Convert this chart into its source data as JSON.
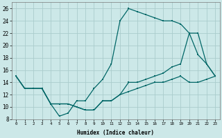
{
  "xlabel": "Humidex (Indice chaleur)",
  "bg_color": "#cce8e8",
  "grid_color": "#aacccc",
  "line_color": "#006666",
  "xlim": [
    -0.5,
    23.5
  ],
  "ylim": [
    8,
    27
  ],
  "xtick_vals": [
    0,
    1,
    2,
    3,
    4,
    5,
    6,
    7,
    8,
    9,
    10,
    11,
    12,
    13,
    14,
    15,
    16,
    17,
    18,
    19,
    20,
    21,
    22,
    23
  ],
  "ytick_vals": [
    8,
    10,
    12,
    14,
    16,
    18,
    20,
    22,
    24,
    26
  ],
  "line1_x": [
    0,
    1,
    2,
    3,
    4,
    5,
    6,
    7,
    8,
    9,
    10,
    11,
    12,
    13,
    14,
    15,
    16,
    17,
    18,
    19,
    20,
    21,
    22,
    23
  ],
  "line1_y": [
    15,
    13,
    13,
    13,
    10.5,
    8.5,
    9.0,
    11.0,
    11.0,
    13.0,
    14.5,
    17.0,
    24.0,
    26.0,
    25.5,
    25.0,
    24.5,
    24.0,
    24.0,
    23.5,
    22.0,
    18.5,
    17.0,
    15.0
  ],
  "line2_x": [
    0,
    1,
    3,
    4,
    5,
    6,
    7,
    8,
    9,
    10,
    11,
    12,
    13,
    14,
    15,
    16,
    17,
    18,
    19,
    20,
    21,
    22,
    23
  ],
  "line2_y": [
    15,
    13,
    13,
    10.5,
    10.5,
    10.5,
    10.0,
    9.5,
    9.5,
    11.0,
    11.0,
    12.0,
    14.0,
    14.0,
    14.5,
    15.0,
    15.5,
    16.5,
    17.0,
    22.0,
    22.0,
    17.0,
    15.0
  ],
  "line3_x": [
    0,
    1,
    3,
    4,
    5,
    6,
    7,
    8,
    9,
    10,
    11,
    12,
    13,
    14,
    15,
    16,
    17,
    18,
    19,
    20,
    21,
    22,
    23
  ],
  "line3_y": [
    15,
    13,
    13,
    10.5,
    10.5,
    10.5,
    10.0,
    9.5,
    9.5,
    11.0,
    11.0,
    12.0,
    12.5,
    13.0,
    13.5,
    14.0,
    14.0,
    14.5,
    15.0,
    14.0,
    14.0,
    14.5,
    15.0
  ]
}
